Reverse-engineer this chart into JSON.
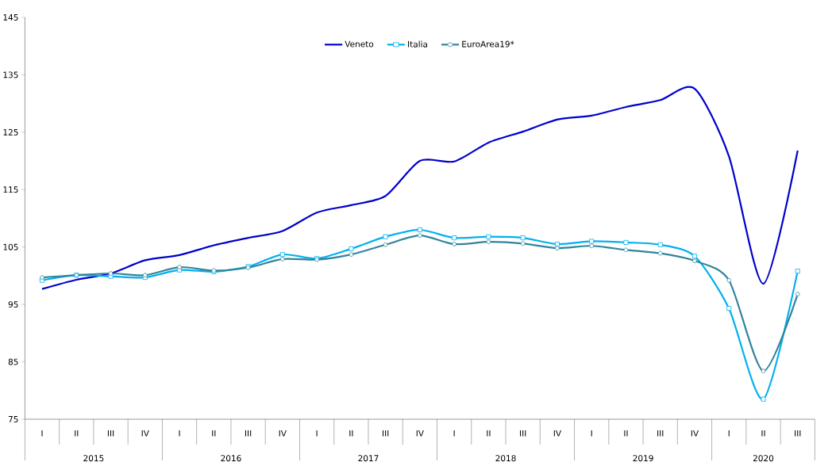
{
  "chart_data": {
    "type": "line",
    "categories": [
      "I",
      "II",
      "III",
      "IV",
      "I",
      "II",
      "III",
      "IV",
      "I",
      "II",
      "III",
      "IV",
      "I",
      "II",
      "III",
      "IV",
      "I",
      "II",
      "III",
      "IV",
      "I",
      "II",
      "III"
    ],
    "annotations": [
      "2015",
      "2016",
      "2017",
      "2018",
      "2019",
      "2020"
    ],
    "ylim": [
      75,
      145
    ],
    "yticks": [
      75,
      85,
      95,
      105,
      115,
      125,
      135,
      145
    ],
    "grid": false,
    "legend": "top",
    "line_style": "solid",
    "series": [
      {
        "name": "Veneto",
        "color": "#0000cc",
        "marker": "none",
        "values": [
          97.7,
          99.3,
          100.4,
          102.7,
          103.6,
          105.3,
          106.6,
          107.8,
          111.0,
          112.3,
          113.9,
          120.0,
          119.9,
          123.2,
          125.1,
          127.2,
          127.9,
          129.4,
          130.6,
          132.6,
          120.8,
          98.6,
          121.8
        ]
      },
      {
        "name": "Italia",
        "color": "#00b0f0",
        "marker": "square",
        "values": [
          99.2,
          100.1,
          99.9,
          99.7,
          101.0,
          100.7,
          101.6,
          103.7,
          103.0,
          104.7,
          106.8,
          108.0,
          106.6,
          106.8,
          106.6,
          105.5,
          106.0,
          105.8,
          105.4,
          103.4,
          94.3,
          78.5,
          100.8
        ]
      },
      {
        "name": "EuroArea19*",
        "color": "#31849b",
        "marker": "circle",
        "values": [
          99.7,
          100.1,
          100.4,
          100.1,
          101.5,
          100.9,
          101.4,
          102.9,
          102.8,
          103.7,
          105.4,
          107.0,
          105.5,
          105.9,
          105.6,
          104.8,
          105.2,
          104.5,
          103.9,
          102.6,
          99.2,
          83.4,
          96.8
        ]
      }
    ]
  }
}
